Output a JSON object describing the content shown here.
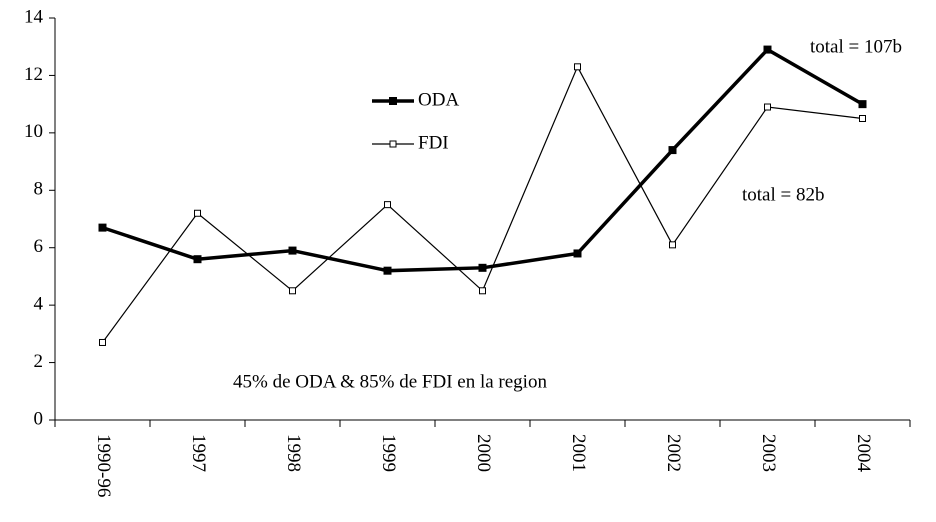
{
  "chart_data": {
    "type": "line",
    "categories": [
      "1990-96",
      "1997",
      "1998",
      "1999",
      "2000",
      "2001",
      "2002",
      "2003",
      "2004"
    ],
    "series": [
      {
        "name": "ODA",
        "color": "#000000",
        "values": [
          6.7,
          5.6,
          5.9,
          5.2,
          5.3,
          5.8,
          9.4,
          12.9,
          11.0
        ]
      },
      {
        "name": "FDI",
        "color": "#000000",
        "values": [
          2.7,
          7.2,
          4.5,
          7.5,
          4.5,
          12.3,
          6.1,
          10.9,
          10.5
        ]
      }
    ],
    "ylim": [
      0,
      14
    ],
    "yticks": [
      0,
      2,
      4,
      6,
      8,
      10,
      12,
      14
    ],
    "annotations": [
      "total = 107b",
      "total = 82b",
      "45% de ODA & 85% de FDI en la region"
    ],
    "grid": false
  }
}
